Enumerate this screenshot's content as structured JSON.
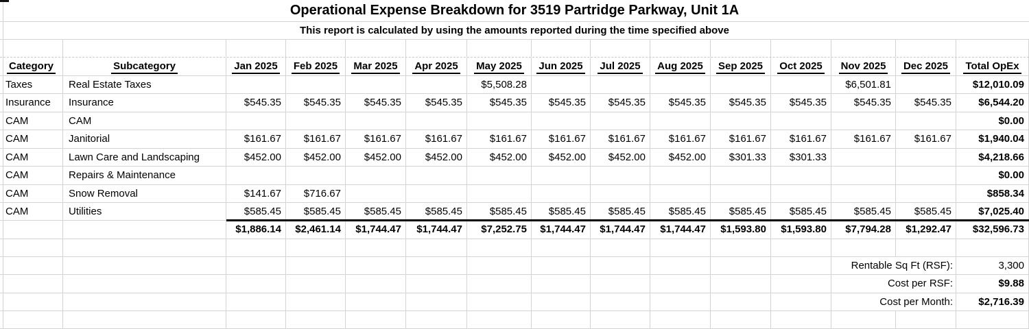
{
  "title": "Operational Expense Breakdown for 3519 Partridge Parkway, Unit 1A",
  "subtitle": "This report is calculated by using the amounts reported during the time specified above",
  "table": {
    "headers": [
      "Category",
      "Subcategory",
      "Jan 2025",
      "Feb 2025",
      "Mar 2025",
      "Apr 2025",
      "May 2025",
      "Jun 2025",
      "Jul 2025",
      "Aug 2025",
      "Sep 2025",
      "Oct 2025",
      "Nov 2025",
      "Dec 2025",
      "Total OpEx"
    ],
    "rows": [
      {
        "category": "Taxes",
        "subcategory": "Real Estate Taxes",
        "months": [
          "",
          "",
          "",
          "",
          "$5,508.28",
          "",
          "",
          "",
          "",
          "",
          "$6,501.81",
          ""
        ],
        "total": "$12,010.09"
      },
      {
        "category": "Insurance",
        "subcategory": "Insurance",
        "months": [
          "$545.35",
          "$545.35",
          "$545.35",
          "$545.35",
          "$545.35",
          "$545.35",
          "$545.35",
          "$545.35",
          "$545.35",
          "$545.35",
          "$545.35",
          "$545.35"
        ],
        "total": "$6,544.20"
      },
      {
        "category": "CAM",
        "subcategory": "CAM",
        "months": [
          "",
          "",
          "",
          "",
          "",
          "",
          "",
          "",
          "",
          "",
          "",
          ""
        ],
        "total": "$0.00"
      },
      {
        "category": "CAM",
        "subcategory": "Janitorial",
        "months": [
          "$161.67",
          "$161.67",
          "$161.67",
          "$161.67",
          "$161.67",
          "$161.67",
          "$161.67",
          "$161.67",
          "$161.67",
          "$161.67",
          "$161.67",
          "$161.67"
        ],
        "total": "$1,940.04"
      },
      {
        "category": "CAM",
        "subcategory": "Lawn Care and Landscaping",
        "months": [
          "$452.00",
          "$452.00",
          "$452.00",
          "$452.00",
          "$452.00",
          "$452.00",
          "$452.00",
          "$452.00",
          "$301.33",
          "$301.33",
          "",
          ""
        ],
        "total": "$4,218.66"
      },
      {
        "category": "CAM",
        "subcategory": "Repairs & Maintenance",
        "months": [
          "",
          "",
          "",
          "",
          "",
          "",
          "",
          "",
          "",
          "",
          "",
          ""
        ],
        "total": "$0.00"
      },
      {
        "category": "CAM",
        "subcategory": "Snow Removal",
        "months": [
          "$141.67",
          "$716.67",
          "",
          "",
          "",
          "",
          "",
          "",
          "",
          "",
          "",
          ""
        ],
        "total": "$858.34"
      },
      {
        "category": "CAM",
        "subcategory": "Utilities",
        "months": [
          "$585.45",
          "$585.45",
          "$585.45",
          "$585.45",
          "$585.45",
          "$585.45",
          "$585.45",
          "$585.45",
          "$585.45",
          "$585.45",
          "$585.45",
          "$585.45"
        ],
        "total": "$7,025.40"
      }
    ],
    "totals_row": {
      "months": [
        "$1,886.14",
        "$2,461.14",
        "$1,744.47",
        "$1,744.47",
        "$7,252.75",
        "$1,744.47",
        "$1,744.47",
        "$1,744.47",
        "$1,593.80",
        "$1,593.80",
        "$7,794.28",
        "$1,292.47"
      ],
      "total": "$32,596.73"
    }
  },
  "summary": {
    "rows": [
      {
        "label": "Rentable Sq Ft (RSF):",
        "value": "3,300"
      },
      {
        "label": "Cost per RSF:",
        "value": "$9.88"
      },
      {
        "label": "Cost per Month:",
        "value": "$2,716.39"
      }
    ]
  },
  "colors": {
    "gridline": "#d3d3d3",
    "totals_border": "#000000",
    "text": "#000000",
    "background": "#ffffff"
  }
}
